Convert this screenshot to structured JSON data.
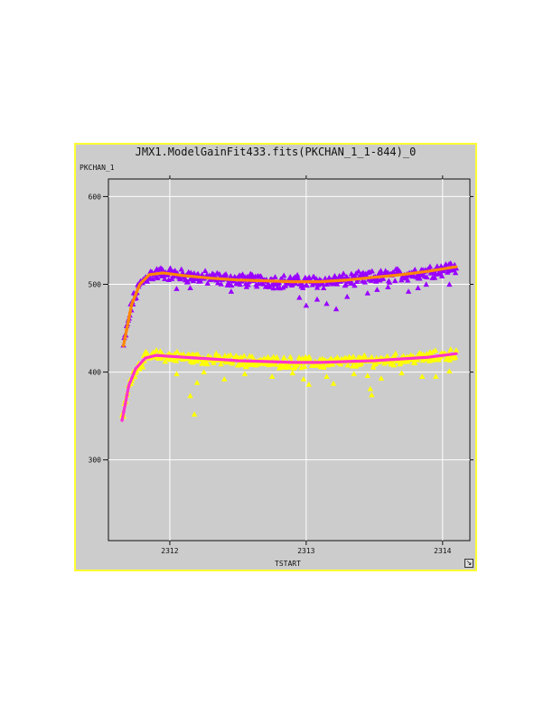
{
  "chart_data": {
    "type": "scatter",
    "title": "JMX1.ModelGainFit433.fits(PKCHAN_1_1-844)_0",
    "ylabel": "PKCHAN_1",
    "xlabel": "TSTART",
    "xlim": [
      2311.55,
      2314.2
    ],
    "ylim": [
      208,
      620
    ],
    "x_ticks": [
      {
        "value": 2312,
        "label": "2312"
      },
      {
        "value": 2313,
        "label": "2313"
      },
      {
        "value": 2314,
        "label": "2314"
      }
    ],
    "y_ticks": [
      {
        "value": 300,
        "label": "300"
      },
      {
        "value": 400,
        "label": "400"
      },
      {
        "value": 500,
        "label": "500"
      },
      {
        "value": 600,
        "label": "600"
      }
    ],
    "grid": true,
    "series": [
      {
        "kind": "points",
        "marker": "triangle",
        "color": "#9900ff",
        "model": {
          "start": 2311.66,
          "end": 2314.1,
          "base": 430,
          "plateau": 512,
          "tau": 0.05,
          "overshoot": 4
        },
        "fit_points": [
          [
            2311.66,
            430
          ],
          [
            2311.72,
            477
          ],
          [
            2311.78,
            500
          ],
          [
            2311.85,
            511
          ],
          [
            2311.95,
            513
          ],
          [
            2312.1,
            510
          ],
          [
            2312.3,
            507
          ],
          [
            2312.5,
            505
          ],
          [
            2312.7,
            504
          ],
          [
            2312.9,
            503
          ],
          [
            2313.1,
            503
          ],
          [
            2313.3,
            505
          ],
          [
            2313.5,
            508
          ],
          [
            2313.7,
            511
          ],
          [
            2313.9,
            515
          ],
          [
            2314.1,
            520
          ]
        ],
        "scatter": 6,
        "dips": [
          [
            2312.05,
            495
          ],
          [
            2312.15,
            496
          ],
          [
            2312.45,
            492
          ],
          [
            2312.95,
            485
          ],
          [
            2313.0,
            476
          ],
          [
            2313.08,
            483
          ],
          [
            2313.15,
            478
          ],
          [
            2313.22,
            472
          ],
          [
            2313.3,
            486
          ],
          [
            2313.45,
            490
          ],
          [
            2313.52,
            494
          ],
          [
            2313.6,
            497
          ],
          [
            2313.75,
            492
          ],
          [
            2313.82,
            496
          ],
          [
            2314.05,
            500
          ],
          [
            2313.88,
            500
          ]
        ]
      },
      {
        "kind": "fit",
        "color": "#ff8800",
        "points": [
          [
            2311.66,
            430
          ],
          [
            2311.72,
            477
          ],
          [
            2311.78,
            500
          ],
          [
            2311.85,
            511
          ],
          [
            2311.95,
            513
          ],
          [
            2312.1,
            510
          ],
          [
            2312.3,
            507
          ],
          [
            2312.5,
            505
          ],
          [
            2312.7,
            504
          ],
          [
            2312.9,
            503
          ],
          [
            2313.1,
            503
          ],
          [
            2313.3,
            505
          ],
          [
            2313.5,
            508
          ],
          [
            2313.7,
            511
          ],
          [
            2313.9,
            515
          ],
          [
            2314.1,
            520
          ]
        ]
      },
      {
        "kind": "points",
        "marker": "triangle",
        "color": "#ffff00",
        "model": {
          "start": 2311.65,
          "end": 2314.1,
          "base": 345,
          "plateau": 418,
          "tau": 0.05,
          "overshoot": 4
        },
        "fit_points": [
          [
            2311.65,
            345
          ],
          [
            2311.7,
            385
          ],
          [
            2311.75,
            404
          ],
          [
            2311.82,
            416
          ],
          [
            2311.9,
            419
          ],
          [
            2312.1,
            417
          ],
          [
            2312.3,
            415
          ],
          [
            2312.5,
            413
          ],
          [
            2312.7,
            412
          ],
          [
            2312.9,
            411
          ],
          [
            2313.1,
            411
          ],
          [
            2313.3,
            412
          ],
          [
            2313.5,
            413
          ],
          [
            2313.7,
            415
          ],
          [
            2313.9,
            417
          ],
          [
            2314.1,
            421
          ]
        ],
        "scatter": 5,
        "dips": [
          [
            2312.15,
            373
          ],
          [
            2312.18,
            352
          ],
          [
            2312.2,
            388
          ],
          [
            2312.25,
            400
          ],
          [
            2312.05,
            398
          ],
          [
            2312.4,
            392
          ],
          [
            2312.55,
            398
          ],
          [
            2312.75,
            395
          ],
          [
            2312.9,
            399
          ],
          [
            2312.98,
            392
          ],
          [
            2313.02,
            386
          ],
          [
            2313.15,
            395
          ],
          [
            2313.2,
            387
          ],
          [
            2313.35,
            398
          ],
          [
            2313.45,
            396
          ],
          [
            2313.48,
            374
          ],
          [
            2313.47,
            381
          ],
          [
            2313.55,
            393
          ],
          [
            2313.7,
            399
          ],
          [
            2313.85,
            395
          ],
          [
            2313.95,
            395
          ],
          [
            2314.05,
            401
          ]
        ]
      },
      {
        "kind": "fit",
        "color": "#ff33cc",
        "points": [
          [
            2311.65,
            345
          ],
          [
            2311.7,
            385
          ],
          [
            2311.75,
            404
          ],
          [
            2311.82,
            416
          ],
          [
            2311.9,
            419
          ],
          [
            2312.1,
            417
          ],
          [
            2312.3,
            415
          ],
          [
            2312.5,
            413
          ],
          [
            2312.7,
            412
          ],
          [
            2312.9,
            411
          ],
          [
            2313.1,
            411
          ],
          [
            2313.3,
            412
          ],
          [
            2313.5,
            413
          ],
          [
            2313.7,
            415
          ],
          [
            2313.9,
            417
          ],
          [
            2314.1,
            421
          ]
        ]
      }
    ]
  }
}
